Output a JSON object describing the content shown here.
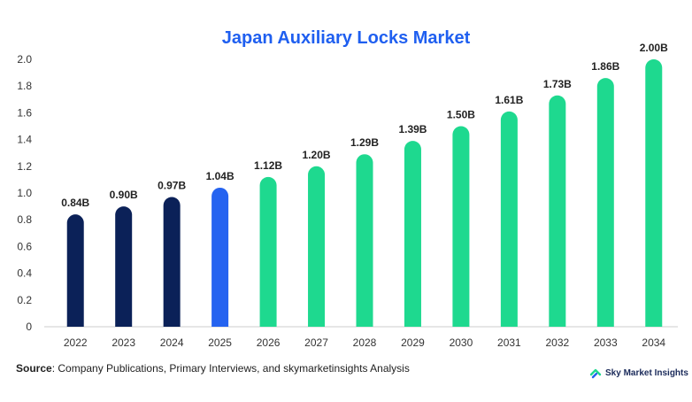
{
  "chart_data": {
    "type": "bar",
    "title": "Japan Auxiliary Locks Market",
    "categories": [
      "2022",
      "2023",
      "2024",
      "2025",
      "2026",
      "2027",
      "2028",
      "2029",
      "2030",
      "2031",
      "2032",
      "2033",
      "2034"
    ],
    "values": [
      0.84,
      0.9,
      0.97,
      1.04,
      1.12,
      1.2,
      1.29,
      1.39,
      1.5,
      1.61,
      1.73,
      1.86,
      2.0
    ],
    "data_labels": [
      "0.84B",
      "0.90B",
      "0.97B",
      "1.04B",
      "1.12B",
      "1.20B",
      "1.29B",
      "1.39B",
      "1.50B",
      "1.61B",
      "1.73B",
      "1.86B",
      "2.00B"
    ],
    "bar_colors": [
      "#0b2158",
      "#0b2158",
      "#0b2158",
      "#2563f0",
      "#1ed98f",
      "#1ed98f",
      "#1ed98f",
      "#1ed98f",
      "#1ed98f",
      "#1ed98f",
      "#1ed98f",
      "#1ed98f",
      "#1ed98f"
    ],
    "xlabel": "",
    "ylabel": "",
    "ylim": [
      0,
      2.0
    ],
    "yticks": [
      "0",
      "0.2",
      "0.4",
      "0.6",
      "0.8",
      "1.0",
      "1.2",
      "1.4",
      "1.6",
      "1.8",
      "2.0"
    ],
    "grid": false,
    "legend": "none"
  },
  "footer": {
    "source_label": "Source",
    "source_text": ": Company Publications, Primary Interviews, and skymarketinsights Analysis",
    "brand_name": "Sky Market Insights",
    "brand_icon": "sky-market-insights-logo-icon"
  },
  "colors": {
    "title": "#1f5ff0",
    "historical": "#0b2158",
    "base_year": "#2563f0",
    "forecast": "#1ed98f"
  }
}
